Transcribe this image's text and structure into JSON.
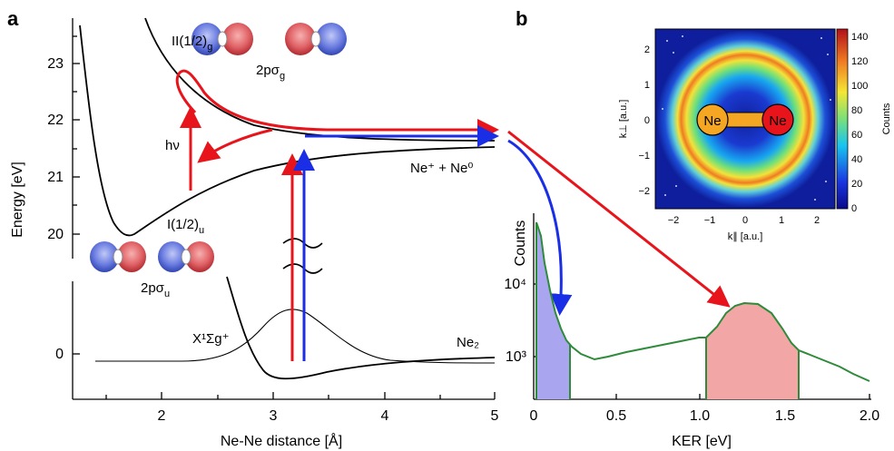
{
  "panel_a": {
    "letter": "a",
    "ylabel": "Energy [eV]",
    "xlabel": "Ne-Ne distance [Å]",
    "yticks_upper": [
      "23",
      "22",
      "21",
      "20"
    ],
    "ytick_lower": "0",
    "xticks": [
      "2",
      "3",
      "4",
      "5"
    ],
    "state_upper": "II(1/2)",
    "state_upper_sub": "g",
    "orbital_upper": "2pσ",
    "orbital_upper_sub": "g",
    "state_lower": "I(1/2)",
    "state_lower_sub": "u",
    "orbital_lower": "2pσ",
    "orbital_lower_sub": "u",
    "photon": "hν",
    "asymptote": "Ne⁺ + Ne⁰",
    "ground_state": "X¹Σg⁺",
    "molecule": "Ne₂"
  },
  "panel_b": {
    "letter": "b",
    "xlabel": "KER [eV]",
    "ylabel": "Counts",
    "xticks": [
      "0",
      "0.5",
      "1.0",
      "1.5",
      "2.0"
    ],
    "yticks": [
      "10⁴",
      "10³"
    ],
    "inset": {
      "xlabel": "k∥ [a.u.]",
      "ylabel": "k⊥ [a.u.]",
      "xticks": [
        "−2",
        "−1",
        "0",
        "1",
        "2"
      ],
      "yticks": [
        "2",
        "1",
        "0",
        "−1",
        "−2"
      ],
      "colorbar_label": "Counts",
      "colorbar_ticks": [
        "140",
        "120",
        "100",
        "80",
        "60",
        "40",
        "20",
        "0"
      ],
      "atom_left": "Ne",
      "atom_right": "Ne"
    }
  },
  "colors": {
    "red_arrow": "#e8141c",
    "blue_arrow": "#1a2ee6",
    "histogram_line": "#2e8b3a",
    "fill_blue": "#a9a6ef",
    "fill_red": "#f2a6a6",
    "atom_left": "#f5a623",
    "atom_right": "#e8141c",
    "orbital_red": "#d9464a",
    "orbital_blue": "#4a5fd6"
  }
}
